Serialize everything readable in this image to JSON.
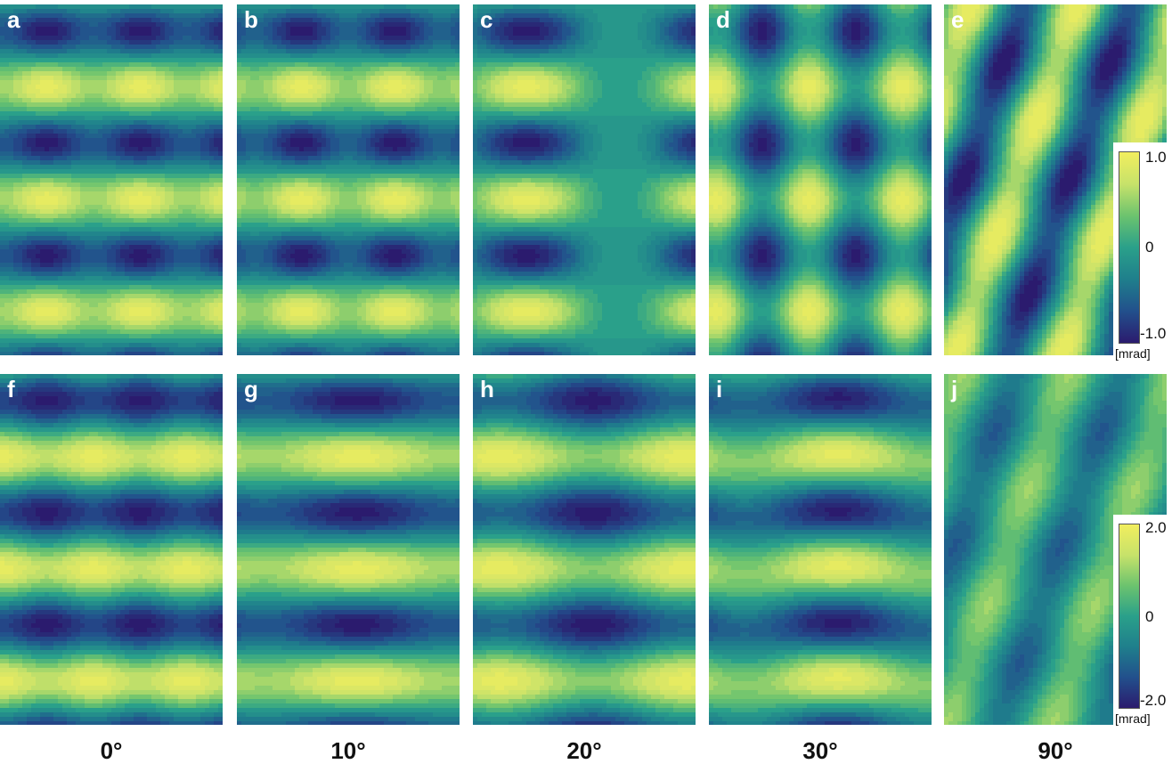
{
  "panel_labels": [
    "a",
    "b",
    "c",
    "d",
    "e",
    "f",
    "g",
    "h",
    "i",
    "j"
  ],
  "angles": [
    "0°",
    "10°",
    "20°",
    "30°",
    "90°"
  ],
  "colorbar_top": {
    "max": "1.0",
    "mid": "0",
    "min": "-1.0",
    "unit": "[mrad]"
  },
  "colorbar_bottom": {
    "max": "2.0",
    "mid": "0",
    "min": "-2.0",
    "unit": "[mrad]"
  },
  "colormap": [
    "#2b1b6e",
    "#22508c",
    "#1f7f8c",
    "#2aa08a",
    "#6cc36e",
    "#c7e26a",
    "#f2ee5e"
  ]
}
